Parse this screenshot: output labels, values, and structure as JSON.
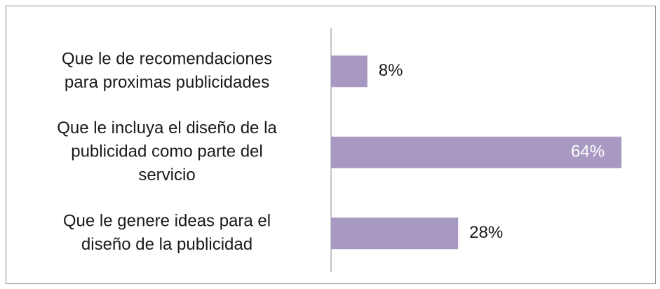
{
  "chart_data": {
    "type": "bar",
    "orientation": "horizontal",
    "categories": [
      [
        "Que le de recomendaciones",
        "para proximas publicidades"
      ],
      [
        "Que le incluya el diseño de la",
        "publicidad como parte del",
        "servicio"
      ],
      [
        "Que le genere ideas para el",
        "diseño de la publicidad"
      ]
    ],
    "values": [
      8,
      64,
      28
    ],
    "value_labels": [
      "8%",
      "64%",
      "28%"
    ],
    "color": "#a899c2"
  }
}
